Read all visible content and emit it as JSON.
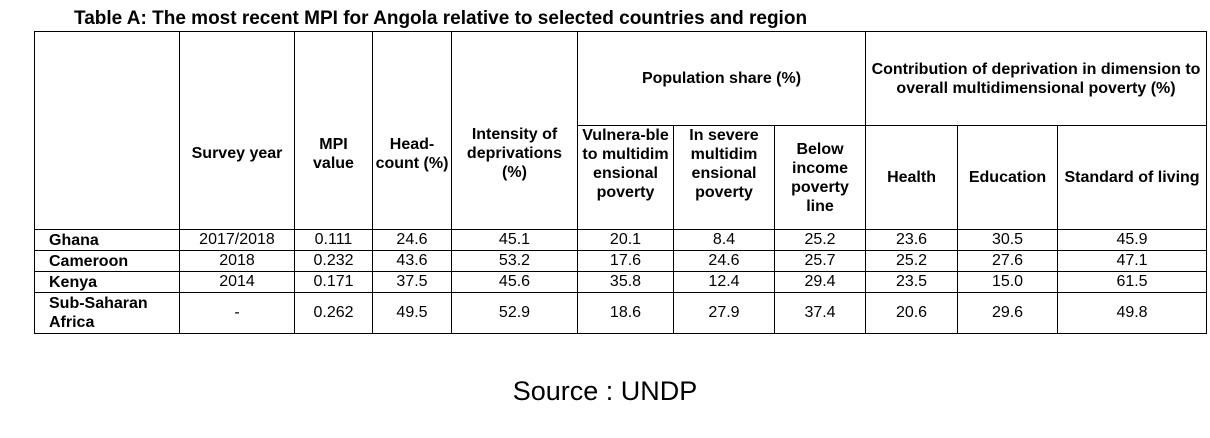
{
  "title": "Table A: The most recent MPI for Angola relative to selected countries and region",
  "headers": {
    "survey_year": "Survey year",
    "mpi_value": "MPI value",
    "headcount": "Head-count (%)",
    "intensity": "Intensity of deprivations (%)",
    "population_share": "Population share (%)",
    "vulnerable": "Vulnera-ble to multidim ensional poverty",
    "severe": "In severe multidim ensional poverty",
    "below_income": "Below income poverty line",
    "contribution": "Contribution of deprivation in dimension to overall multidimensional poverty (%)",
    "health": "Health",
    "education": "Education",
    "standard_of_living": "Standard of living"
  },
  "rows": [
    {
      "name": "Ghana",
      "cells": [
        "2017/2018",
        "0.111",
        "24.6",
        "45.1",
        "20.1",
        "8.4",
        "25.2",
        "23.6",
        "30.5",
        "45.9"
      ]
    },
    {
      "name": "Cameroon",
      "cells": [
        "2018",
        "0.232",
        "43.6",
        "53.2",
        "17.6",
        "24.6",
        "25.7",
        "25.2",
        "27.6",
        "47.1"
      ]
    },
    {
      "name": "Kenya",
      "cells": [
        "2014",
        "0.171",
        "37.5",
        "45.6",
        "35.8",
        "12.4",
        "29.4",
        "23.5",
        "15.0",
        "61.5"
      ]
    },
    {
      "name": "Sub-Saharan Africa",
      "cells": [
        "-",
        "0.262",
        "49.5",
        "52.9",
        "18.6",
        "27.9",
        "37.4",
        "20.6",
        "29.6",
        "49.8"
      ]
    }
  ],
  "source": "Source : UNDP"
}
